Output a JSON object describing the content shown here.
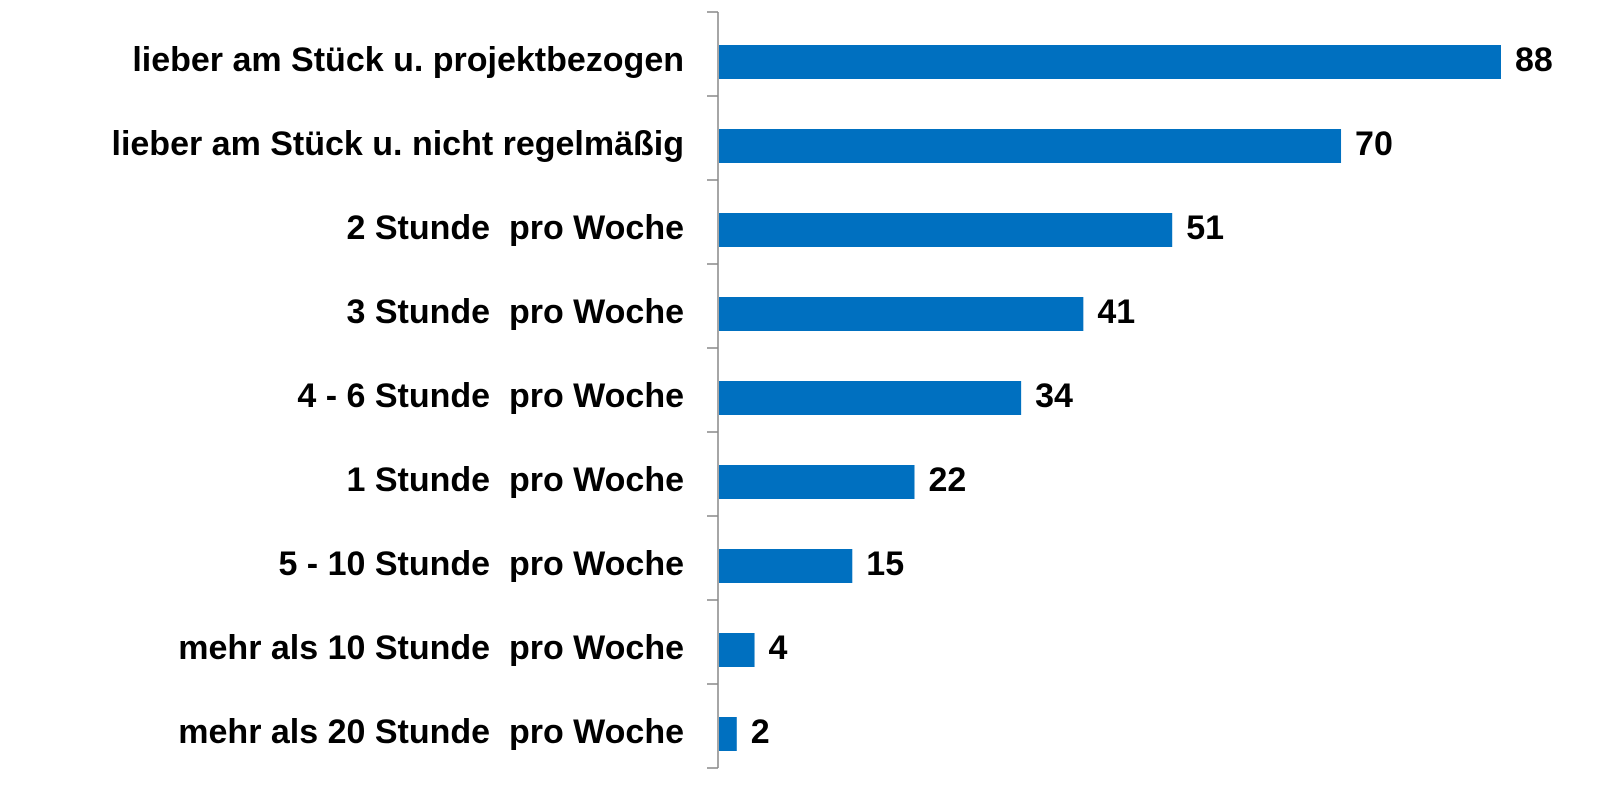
{
  "chart_data": {
    "type": "bar",
    "orientation": "horizontal",
    "categories": [
      "lieber am Stück u. projektbezogen",
      "lieber am Stück u. nicht regelmäßig",
      "2 Stunde  pro Woche",
      "3 Stunde  pro Woche",
      "4 - 6 Stunde  pro Woche",
      "1 Stunde  pro Woche",
      "5 - 10 Stunde  pro Woche",
      "mehr als 10 Stunde  pro Woche",
      "mehr als 20 Stunde  pro Woche"
    ],
    "values": [
      88,
      70,
      51,
      41,
      34,
      22,
      15,
      4,
      2
    ],
    "color": "#0070c0"
  }
}
